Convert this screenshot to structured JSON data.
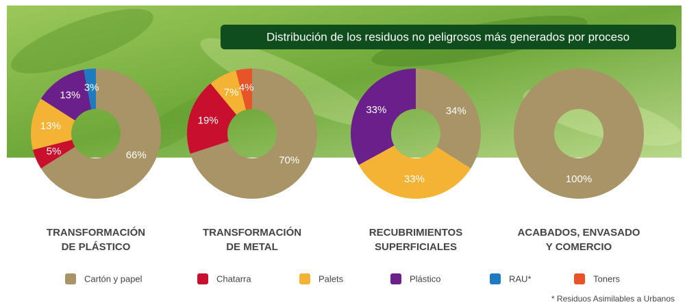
{
  "title": "Distribución de los residuos no peligrosos más generados por proceso",
  "legend": [
    {
      "name": "Cartón y papel",
      "color": "#a89466"
    },
    {
      "name": "Chatarra",
      "color": "#c8102e"
    },
    {
      "name": "Palets",
      "color": "#f5b335"
    },
    {
      "name": "Plástico",
      "color": "#6a1f8a"
    },
    {
      "name": "RAU*",
      "color": "#1f7bc1"
    },
    {
      "name": "Toners",
      "color": "#e8542a"
    }
  ],
  "footnote": "* Residuos Asimilables a Urbanos",
  "chart_data": [
    {
      "type": "pie",
      "title": [
        "TRANSFORMACIÓN",
        "DE PLÁSTICO"
      ],
      "categories": [
        "Cartón y papel",
        "Chatarra",
        "Palets",
        "Plástico",
        "RAU*"
      ],
      "values": [
        66,
        5,
        13,
        13,
        3
      ],
      "value_labels": [
        "66%",
        "5%",
        "13%",
        "13%",
        "3%"
      ],
      "colors": [
        "#a89466",
        "#c8102e",
        "#f5b335",
        "#6a1f8a",
        "#1f7bc1"
      ]
    },
    {
      "type": "pie",
      "title": [
        "TRANSFORMACIÓN",
        "DE METAL"
      ],
      "categories": [
        "Cartón y papel",
        "Chatarra",
        "Palets",
        "Toners"
      ],
      "values": [
        70,
        19,
        7,
        4
      ],
      "value_labels": [
        "70%",
        "19%",
        "7%",
        "4%"
      ],
      "colors": [
        "#a89466",
        "#c8102e",
        "#f5b335",
        "#e8542a"
      ]
    },
    {
      "type": "pie",
      "title": [
        "RECUBRIMIENTOS",
        "SUPERFICIALES"
      ],
      "categories": [
        "Cartón y papel",
        "Palets",
        "Plástico"
      ],
      "values": [
        34,
        33,
        33
      ],
      "value_labels": [
        "34%",
        "33%",
        "33%"
      ],
      "colors": [
        "#a89466",
        "#f5b335",
        "#6a1f8a"
      ]
    },
    {
      "type": "pie",
      "title": [
        "ACABADOS, ENVASADO",
        "Y COMERCIO"
      ],
      "categories": [
        "Cartón y papel"
      ],
      "values": [
        100
      ],
      "value_labels": [
        "100%"
      ],
      "colors": [
        "#a89466"
      ]
    }
  ]
}
